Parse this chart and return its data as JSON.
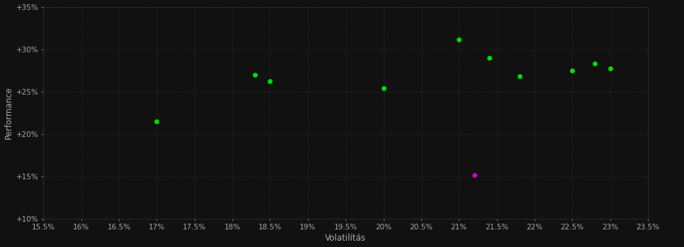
{
  "background_color": "#111111",
  "plot_bg_color": "#111111",
  "grid_color": "#2a2a2a",
  "xlabel": "Volatilítás",
  "ylabel": "Performance",
  "xlim": [
    0.155,
    0.235
  ],
  "ylim": [
    0.1,
    0.35
  ],
  "xticks": [
    0.155,
    0.16,
    0.165,
    0.17,
    0.175,
    0.18,
    0.185,
    0.19,
    0.195,
    0.2,
    0.205,
    0.21,
    0.215,
    0.22,
    0.225,
    0.23,
    0.235
  ],
  "yticks": [
    0.1,
    0.15,
    0.2,
    0.25,
    0.3,
    0.35
  ],
  "ytick_labels": [
    "+10%",
    "+15%",
    "+20%",
    "+25%",
    "+30%",
    "+35%"
  ],
  "xtick_labels": [
    "15.5%",
    "16%",
    "16.5%",
    "17%",
    "17.5%",
    "18%",
    "18.5%",
    "19%",
    "19.5%",
    "20%",
    "20.5%",
    "21%",
    "21.5%",
    "22%",
    "22.5%",
    "23%",
    "23.5%"
  ],
  "green_points": [
    [
      0.17,
      0.215
    ],
    [
      0.183,
      0.27
    ],
    [
      0.185,
      0.262
    ],
    [
      0.2,
      0.254
    ],
    [
      0.21,
      0.311
    ],
    [
      0.214,
      0.29
    ],
    [
      0.218,
      0.268
    ],
    [
      0.225,
      0.275
    ],
    [
      0.228,
      0.283
    ],
    [
      0.23,
      0.277
    ]
  ],
  "magenta_points": [
    [
      0.212,
      0.152
    ]
  ],
  "point_size": 25,
  "green_color": "#00dd00",
  "magenta_color": "#cc00cc",
  "text_color": "#aaaaaa",
  "tick_fontsize": 7.5,
  "axis_label_fontsize": 8.5
}
